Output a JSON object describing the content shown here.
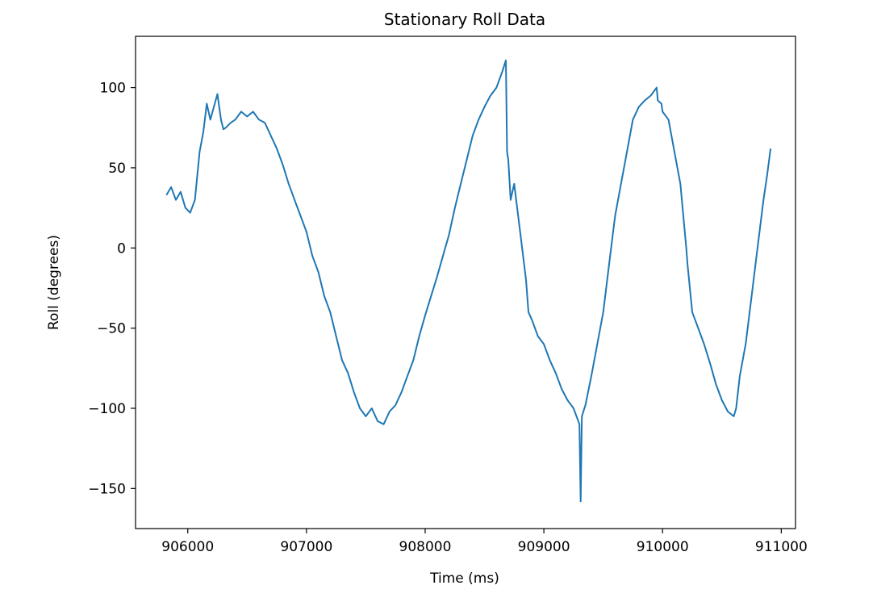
{
  "chart_data": {
    "type": "line",
    "title": "Stationary Roll Data",
    "xlabel": "Time (ms)",
    "ylabel": "Roll (degrees)",
    "xlim": [
      905560,
      911120
    ],
    "ylim": [
      -175,
      132
    ],
    "xticks": [
      906000,
      907000,
      908000,
      909000,
      910000,
      911000
    ],
    "xtick_labels": [
      "906000",
      "907000",
      "908000",
      "909000",
      "910000",
      "911000"
    ],
    "yticks": [
      100,
      50,
      0,
      -50,
      -100,
      -150
    ],
    "ytick_labels": [
      "100",
      "50",
      "0",
      "−50",
      "−100",
      "−150"
    ],
    "grid": false,
    "color": "#1f77b4",
    "series": [
      {
        "x": [
          905820,
          905860,
          905900,
          905940,
          905980,
          906020,
          906060,
          906080,
          906100,
          906130,
          906160,
          906190,
          906220,
          906250,
          906280,
          906300,
          906320,
          906360,
          906400,
          906450,
          906500,
          906550,
          906600,
          906650,
          906700,
          906750,
          906800,
          906850,
          906900,
          906950,
          907000,
          907050,
          907100,
          907150,
          907200,
          907250,
          907300,
          907350,
          907400,
          907450,
          907500,
          907550,
          907600,
          907650,
          907700,
          907750,
          907800,
          907850,
          907900,
          907950,
          908000,
          908050,
          908100,
          908150,
          908200,
          908250,
          908300,
          908350,
          908400,
          908450,
          908500,
          908550,
          908600,
          908650,
          908680,
          908690,
          908700,
          908720,
          908750,
          908800,
          908850,
          908870,
          908900,
          908950,
          909000,
          909050,
          909100,
          909150,
          909200,
          909250,
          909300,
          909310,
          909320,
          909350,
          909400,
          909450,
          909500,
          909550,
          909600,
          909650,
          909700,
          909750,
          909800,
          909850,
          909900,
          909950,
          909960,
          909990,
          910000,
          910050,
          910100,
          910150,
          910200,
          910210,
          910250,
          910300,
          910350,
          910400,
          910450,
          910500,
          910550,
          910600,
          910620,
          910650,
          910700,
          910750,
          910800,
          910850,
          910880,
          910910
        ],
        "y": [
          33,
          38,
          30,
          35,
          25,
          22,
          30,
          45,
          60,
          72,
          90,
          80,
          88,
          96,
          80,
          74,
          75,
          78,
          80,
          85,
          82,
          85,
          80,
          78,
          70,
          62,
          52,
          40,
          30,
          20,
          10,
          -5,
          -15,
          -30,
          -40,
          -55,
          -70,
          -78,
          -90,
          -100,
          -105,
          -100,
          -108,
          -110,
          -102,
          -98,
          -90,
          -80,
          -70,
          -55,
          -42,
          -30,
          -18,
          -5,
          8,
          25,
          40,
          55,
          70,
          80,
          88,
          95,
          100,
          110,
          117,
          60,
          55,
          30,
          40,
          10,
          -20,
          -40,
          -45,
          -55,
          -60,
          -70,
          -78,
          -88,
          -95,
          -100,
          -110,
          -158,
          -105,
          -98,
          -80,
          -60,
          -40,
          -10,
          20,
          40,
          60,
          80,
          88,
          92,
          95,
          100,
          92,
          90,
          85,
          80,
          60,
          40,
          0,
          -10,
          -40,
          -50,
          -60,
          -72,
          -85,
          -95,
          -102,
          -105,
          -100,
          -80,
          -60,
          -30,
          0,
          30,
          45,
          62
        ]
      }
    ]
  }
}
